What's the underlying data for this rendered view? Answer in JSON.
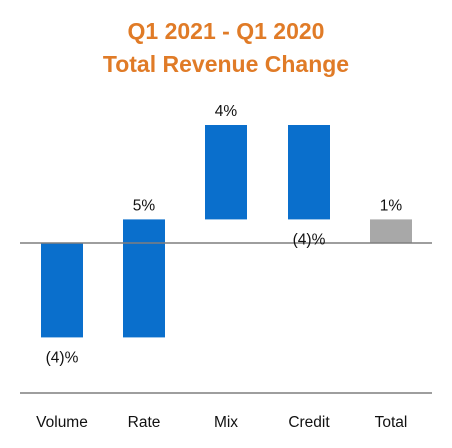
{
  "chart_data": {
    "type": "bar",
    "subtype": "waterfall",
    "title_lines": [
      "Q1 2021 - Q1 2020",
      "Total Revenue Change"
    ],
    "xlabel": "",
    "ylabel": "",
    "categories": [
      "Volume",
      "Rate",
      "Mix",
      "Credit",
      "Total"
    ],
    "values": [
      -4,
      5,
      4,
      -4,
      1
    ],
    "value_labels": [
      "(4)%",
      "5%",
      "4%",
      "(4)%",
      "1%"
    ],
    "bar_kinds": [
      "delta",
      "delta",
      "delta",
      "delta",
      "total"
    ],
    "ylim": [
      -6,
      5
    ],
    "grid": false,
    "legend": "none"
  },
  "colors": {
    "title": "#E07B27",
    "delta_bar": "#0A6FCC",
    "total_bar": "#A8A8A8",
    "axis_line": "#7F7F7F",
    "text": "#111111"
  }
}
